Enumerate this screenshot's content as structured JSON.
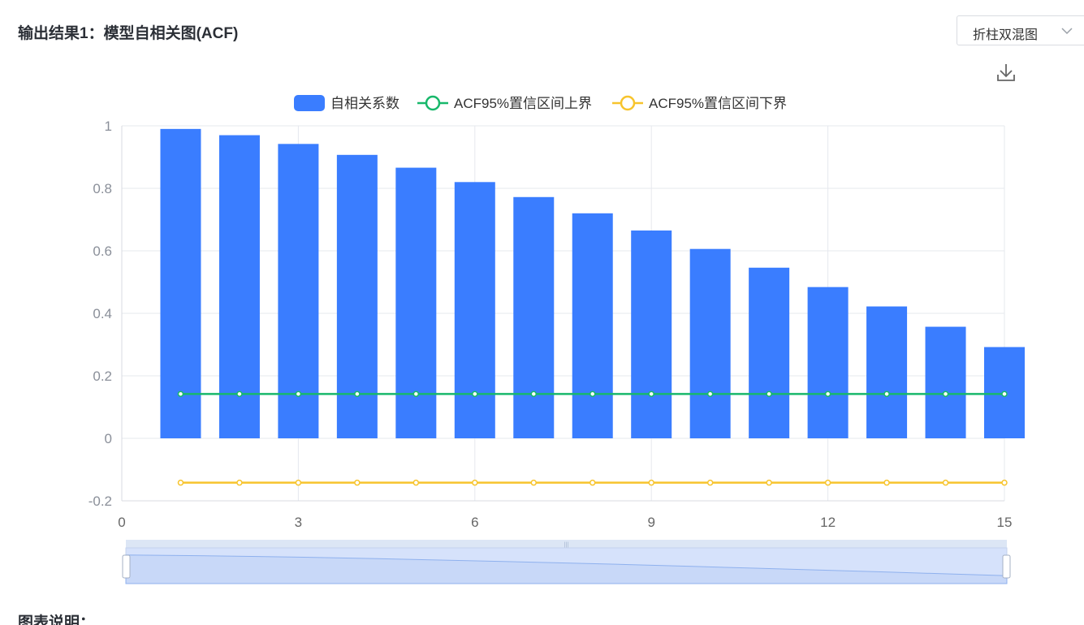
{
  "header": {
    "title": "输出结果1：模型自相关图(ACF)",
    "chart_type_select": "折柱双混图"
  },
  "footer": {
    "label": "图表说明："
  },
  "colors": {
    "bar": "#3a7dff",
    "upper": "#18b86b",
    "lower": "#f7c42d",
    "axis_text": "#8a8f99",
    "grid": "#e6e8ee"
  },
  "chart_data": {
    "type": "bar",
    "legend": [
      "自相关系数",
      "ACF95%置信区间上界",
      "ACF95%置信区间下界"
    ],
    "x": [
      1,
      2,
      3,
      4,
      5,
      6,
      7,
      8,
      9,
      10,
      11,
      12,
      13,
      14,
      15
    ],
    "xlim": [
      0,
      15
    ],
    "xticks": [
      "0",
      "3",
      "6",
      "9",
      "12",
      "15"
    ],
    "ylim": [
      -0.2,
      1
    ],
    "yticks": [
      "1",
      "0.8",
      "0.6",
      "0.4",
      "0.2",
      "0",
      "-0.2"
    ],
    "series": [
      {
        "name": "自相关系数",
        "kind": "bar",
        "values": [
          0.99,
          0.97,
          0.942,
          0.907,
          0.866,
          0.82,
          0.772,
          0.72,
          0.665,
          0.606,
          0.546,
          0.484,
          0.422,
          0.357,
          0.292
        ]
      },
      {
        "name": "ACF95%置信区间上界",
        "kind": "line",
        "values": [
          0.142,
          0.142,
          0.142,
          0.142,
          0.142,
          0.142,
          0.142,
          0.142,
          0.142,
          0.142,
          0.142,
          0.142,
          0.142,
          0.142,
          0.142
        ]
      },
      {
        "name": "ACF95%置信区间下界",
        "kind": "line",
        "values": [
          -0.142,
          -0.142,
          -0.142,
          -0.142,
          -0.142,
          -0.142,
          -0.142,
          -0.142,
          -0.142,
          -0.142,
          -0.142,
          -0.142,
          -0.142,
          -0.142,
          -0.142
        ]
      }
    ],
    "grid": true,
    "legend_position": "top-center",
    "zoom_slider": true
  }
}
